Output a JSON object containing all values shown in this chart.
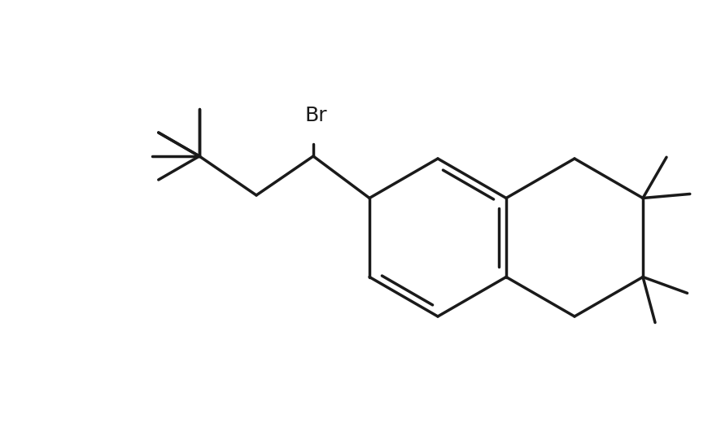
{
  "background_color": "#ffffff",
  "line_color": "#1a1a1a",
  "line_width": 2.5,
  "figsize": [
    8.86,
    5.2
  ],
  "dpi": 100,
  "label_Br": "Br",
  "label_fontsize": 18,
  "label_fontfamily": "Arial"
}
